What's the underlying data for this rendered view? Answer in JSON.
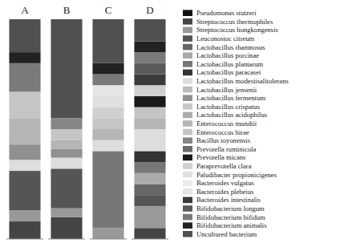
{
  "chart_data": {
    "type": "bar",
    "stacked": true,
    "categories": [
      "A",
      "B",
      "C",
      "D"
    ],
    "series": [
      {
        "name": "Pseudomonas stutzeri",
        "color": "#111111",
        "values": [
          0,
          0,
          0,
          0
        ]
      },
      {
        "name": "Streptococcus thermophiles",
        "color": "#444444",
        "values": [
          8,
          10,
          0,
          5
        ]
      },
      {
        "name": "Streptococcus hongkongensis",
        "color": "#999999",
        "values": [
          5,
          4,
          5,
          10
        ]
      },
      {
        "name": "Leuconostoc citreum",
        "color": "#555555",
        "values": [
          18,
          18,
          0,
          5
        ]
      },
      {
        "name": "Lactobacillus rhamnosus",
        "color": "#666666",
        "values": [
          0,
          0,
          0,
          5
        ]
      },
      {
        "name": "Lactobacillus porcinae",
        "color": "#aaaaaa",
        "values": [
          0,
          0,
          0,
          5
        ]
      },
      {
        "name": "Lactobacillus plantarum",
        "color": "#777777",
        "values": [
          0,
          0,
          35,
          5
        ]
      },
      {
        "name": "Lactobacillus paracasei",
        "color": "#333333",
        "values": [
          0,
          0,
          0,
          5
        ]
      },
      {
        "name": "Lactobacillus modestisalitolerans",
        "color": "#dddddd",
        "values": [
          5,
          5,
          5,
          10
        ]
      },
      {
        "name": "Lactobacillus jensenii",
        "color": "#bbbbbb",
        "values": [
          0,
          0,
          0,
          0
        ]
      },
      {
        "name": "Lactobacillus fermentum",
        "color": "#909090",
        "values": [
          7,
          4,
          0,
          0
        ]
      },
      {
        "name": "Lactobacillus crispatus",
        "color": "#c8c8c8",
        "values": [
          0,
          0,
          0,
          0
        ]
      },
      {
        "name": "Lactobacillus acidophilus",
        "color": "#ababab",
        "values": [
          0,
          0,
          0,
          0
        ]
      },
      {
        "name": "Enterococcus mundtii",
        "color": "#b5b5b5",
        "values": [
          12,
          4,
          5,
          5
        ]
      },
      {
        "name": "Enterococcus hirae",
        "color": "#c5c5c5",
        "values": [
          12,
          5,
          5,
          5
        ]
      },
      {
        "name": "Bacillus toyonensis",
        "color": "#858585",
        "values": [
          0,
          5,
          0,
          0
        ]
      },
      {
        "name": "Prevotella ruminicola",
        "color": "#6a6a6a",
        "values": [
          0,
          0,
          0,
          0
        ]
      },
      {
        "name": "Prevotella micans",
        "color": "#1a1a1a",
        "values": [
          0,
          0,
          0,
          5
        ]
      },
      {
        "name": "Paraprevotella clara",
        "color": "#d0d0d0",
        "values": [
          0,
          0,
          5,
          5
        ]
      },
      {
        "name": "Paludibacter propionicigenes",
        "color": "#e0e0e0",
        "values": [
          0,
          0,
          5,
          0
        ]
      },
      {
        "name": "Bacteroides vulgatus",
        "color": "#ebebeb",
        "values": [
          0,
          0,
          0,
          0
        ]
      },
      {
        "name": "Bacteroides plebeius",
        "color": "#e5e5e5",
        "values": [
          0,
          0,
          5,
          0
        ]
      },
      {
        "name": "Bacteroides intestinalis",
        "color": "#3a3a3a",
        "values": [
          0,
          0,
          0,
          5
        ]
      },
      {
        "name": "Bifidobacterium longum",
        "color": "#5a5a5a",
        "values": [
          0,
          0,
          0,
          5
        ]
      },
      {
        "name": "Bifidobacterium bifidum",
        "color": "#7a7a7a",
        "values": [
          13,
          0,
          5,
          5
        ]
      },
      {
        "name": "Bifidobacterium animalis",
        "color": "#222222",
        "values": [
          5,
          0,
          5,
          5
        ]
      },
      {
        "name": "Uncultured bacterium",
        "color": "#505050",
        "values": [
          15,
          45,
          20,
          10
        ]
      }
    ],
    "ylim": [
      0,
      100
    ],
    "tick_labels": false,
    "legend": "right"
  }
}
